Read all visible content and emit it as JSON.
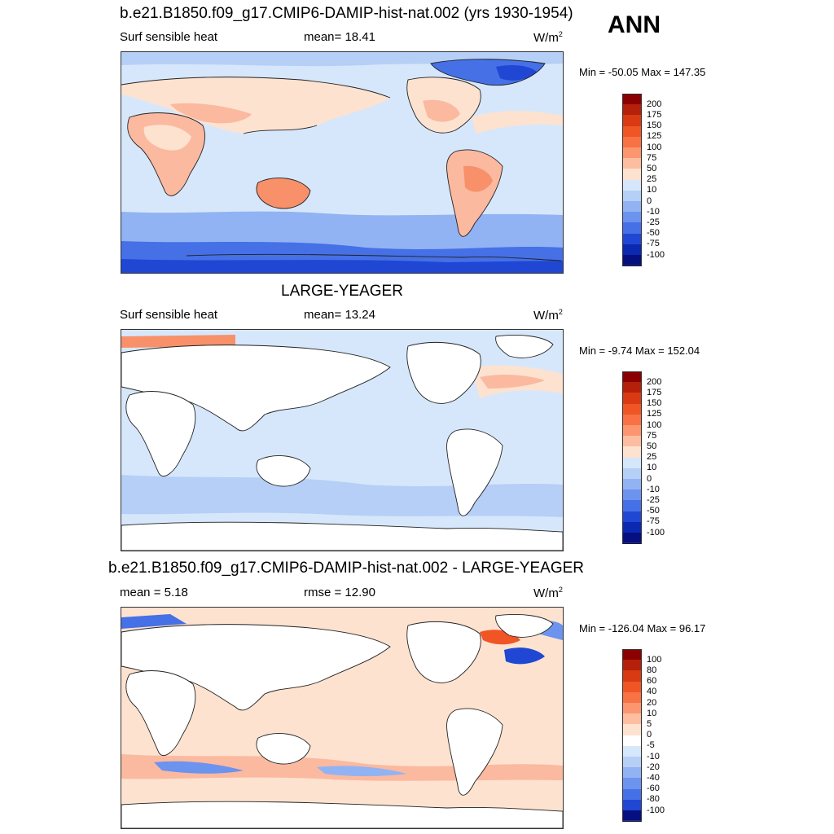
{
  "corner_label": "ANN",
  "panels": [
    {
      "title": "b.e21.B1850.f09_g17.CMIP6-DAMIP-hist-nat.002 (yrs 1930-1954)",
      "variable": "Surf sensible heat",
      "stat_text": "mean=  18.41",
      "stat2_text": "",
      "units": "W/m",
      "units_exp": "2",
      "minmax": "Min = -50.05 Max = 147.35",
      "colorbar": {
        "labels": [
          "200",
          "175",
          "150",
          "125",
          "100",
          "75",
          "50",
          "25",
          "10",
          "0",
          "-10",
          "-25",
          "-50",
          "-75",
          "-100"
        ],
        "colors": [
          "#8b0000",
          "#b5200a",
          "#d93a13",
          "#f05525",
          "#f87245",
          "#fb9670",
          "#fdbda0",
          "#fde2d0",
          "#d7e7fb",
          "#b5cff7",
          "#91b3f3",
          "#6c93ee",
          "#4570e6",
          "#2047d3",
          "#0a28b0",
          "#050f80"
        ]
      }
    },
    {
      "title": "LARGE-YEAGER",
      "variable": "Surf sensible heat",
      "stat_text": "mean=  13.24",
      "stat2_text": "",
      "units": "W/m",
      "units_exp": "2",
      "minmax": "Min =  -9.74 Max = 152.04",
      "colorbar": {
        "labels": [
          "200",
          "175",
          "150",
          "125",
          "100",
          "75",
          "50",
          "25",
          "10",
          "0",
          "-10",
          "-25",
          "-50",
          "-75",
          "-100"
        ],
        "colors": [
          "#8b0000",
          "#b5200a",
          "#d93a13",
          "#f05525",
          "#f87245",
          "#fb9670",
          "#fdbda0",
          "#fde2d0",
          "#d7e7fb",
          "#b5cff7",
          "#91b3f3",
          "#6c93ee",
          "#4570e6",
          "#2047d3",
          "#0a28b0",
          "#050f80"
        ]
      }
    },
    {
      "title": "b.e21.B1850.f09_g17.CMIP6-DAMIP-hist-nat.002 - LARGE-YEAGER",
      "variable": "mean =   5.18",
      "stat_text": "rmse =  12.90",
      "stat2_text": "",
      "units": "W/m",
      "units_exp": "2",
      "minmax": "Min = -126.04 Max =  96.17",
      "colorbar": {
        "labels": [
          "100",
          "80",
          "60",
          "40",
          "20",
          "10",
          "5",
          "0",
          "-5",
          "-10",
          "-20",
          "-40",
          "-60",
          "-80",
          "-100"
        ],
        "colors": [
          "#8b0000",
          "#b5200a",
          "#d93a13",
          "#f05525",
          "#f87245",
          "#fb9670",
          "#fdbda0",
          "#fde2d0",
          "#ffffff",
          "#d7e7fb",
          "#b5cff7",
          "#91b3f3",
          "#6c93ee",
          "#4570e6",
          "#2047d3",
          "#050f80"
        ]
      }
    }
  ]
}
